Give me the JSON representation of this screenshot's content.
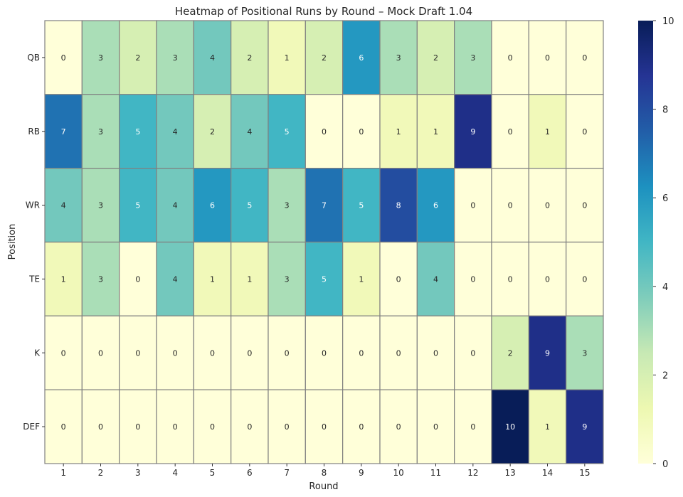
{
  "chart_data": {
    "type": "heatmap",
    "title": "Heatmap of Positional Runs by Round – Mock Draft 1.04",
    "xlabel": "Round",
    "ylabel": "Position",
    "x_categories": [
      "1",
      "2",
      "3",
      "4",
      "5",
      "6",
      "7",
      "8",
      "9",
      "10",
      "11",
      "12",
      "13",
      "14",
      "15"
    ],
    "y_categories": [
      "QB",
      "RB",
      "WR",
      "TE",
      "K",
      "DEF"
    ],
    "values": [
      [
        0,
        3,
        2,
        3,
        4,
        2,
        1,
        2,
        6,
        3,
        2,
        3,
        0,
        0,
        0
      ],
      [
        7,
        3,
        5,
        4,
        2,
        4,
        5,
        0,
        0,
        1,
        1,
        9,
        0,
        1,
        0
      ],
      [
        4,
        3,
        5,
        4,
        6,
        5,
        3,
        7,
        5,
        8,
        6,
        0,
        0,
        0,
        0
      ],
      [
        1,
        3,
        0,
        4,
        1,
        1,
        3,
        5,
        1,
        0,
        4,
        0,
        0,
        0,
        0
      ],
      [
        0,
        0,
        0,
        0,
        0,
        0,
        0,
        0,
        0,
        0,
        0,
        0,
        2,
        9,
        3
      ],
      [
        0,
        0,
        0,
        0,
        0,
        0,
        0,
        0,
        0,
        0,
        0,
        0,
        10,
        1,
        9
      ]
    ],
    "colormap": "YlGnBu",
    "colormap_stops": [
      "#ffffd9",
      "#edf8b1",
      "#c7e9b4",
      "#7fcdbb",
      "#41b6c4",
      "#1d91c0",
      "#225ea8",
      "#253494",
      "#081d58"
    ],
    "vmin": 0,
    "vmax": 10,
    "colorbar_ticks": [
      "0",
      "2",
      "4",
      "6",
      "8",
      "10"
    ],
    "annotations": true,
    "grid_line_color": "#808080"
  }
}
